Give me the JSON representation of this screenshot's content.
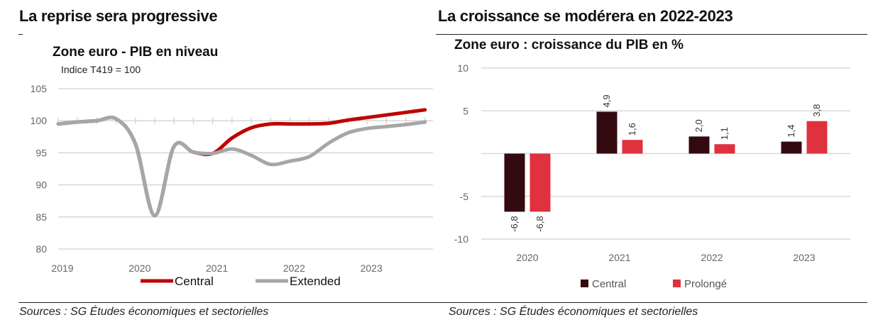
{
  "left_panel": {
    "title": "La reprise sera progressive",
    "source": "Sources : SG Études économiques et sectorielles"
  },
  "right_panel": {
    "title": "La croissance se modérera en 2022-2023",
    "source": "Sources : SG Études économiques et sectorielles"
  },
  "chart_data": [
    {
      "type": "line",
      "title": "Zone euro - PIB en niveau",
      "subtitle": "Indice T419 = 100",
      "xlabel": "",
      "ylabel": "",
      "ylim": [
        80,
        105
      ],
      "yticks": [
        105,
        100,
        95,
        90,
        85,
        80
      ],
      "xtick_labels": [
        "2019",
        "2020",
        "2021",
        "2022",
        "2023"
      ],
      "x": [
        "2019Q1",
        "2019Q2",
        "2019Q3",
        "2019Q4",
        "2020Q1",
        "2020Q2",
        "2020Q3",
        "2020Q4",
        "2021Q1",
        "2021Q2",
        "2021Q3",
        "2021Q4",
        "2022Q1",
        "2022Q2",
        "2022Q3",
        "2022Q4",
        "2023Q1",
        "2023Q2",
        "2023Q3",
        "2023Q4"
      ],
      "series": [
        {
          "name": "Central",
          "color": "#c00000",
          "values": [
            99.5,
            99.8,
            100.0,
            100.3,
            96.4,
            85.2,
            96.0,
            95.1,
            94.9,
            97.3,
            98.9,
            99.5,
            99.5,
            99.5,
            99.6,
            100.1,
            100.5,
            100.9,
            101.3,
            101.7
          ]
        },
        {
          "name": "Extended",
          "color": "#a6a6a6",
          "values": [
            99.5,
            99.8,
            100.0,
            100.3,
            96.4,
            85.2,
            96.0,
            95.1,
            94.9,
            95.6,
            94.6,
            93.2,
            93.7,
            94.4,
            96.5,
            98.1,
            98.8,
            99.1,
            99.4,
            99.8
          ]
        }
      ],
      "grid": true,
      "legend": "bottom"
    },
    {
      "type": "bar",
      "title": "Zone euro : croissance du PIB en %",
      "xlabel": "",
      "ylabel": "",
      "ylim": [
        -10,
        10
      ],
      "yticks": [
        10,
        5,
        0,
        -5,
        -10
      ],
      "ytick_labels": [
        "10",
        "5",
        "",
        "-5",
        "-10"
      ],
      "categories": [
        "2020",
        "2021",
        "2022",
        "2023"
      ],
      "series": [
        {
          "name": "Central",
          "color": "#330a10",
          "values": [
            -6.8,
            4.9,
            2.0,
            1.4
          ],
          "labels": [
            "-6,8",
            "4,9",
            "2,0",
            "1,4"
          ]
        },
        {
          "name": "Prolongé",
          "color": "#e0313f",
          "values": [
            -6.8,
            1.6,
            1.1,
            3.8
          ],
          "labels": [
            "-6,8",
            "1,6",
            "1,1",
            "3,8"
          ]
        }
      ],
      "grid": true,
      "legend": "bottom"
    }
  ]
}
